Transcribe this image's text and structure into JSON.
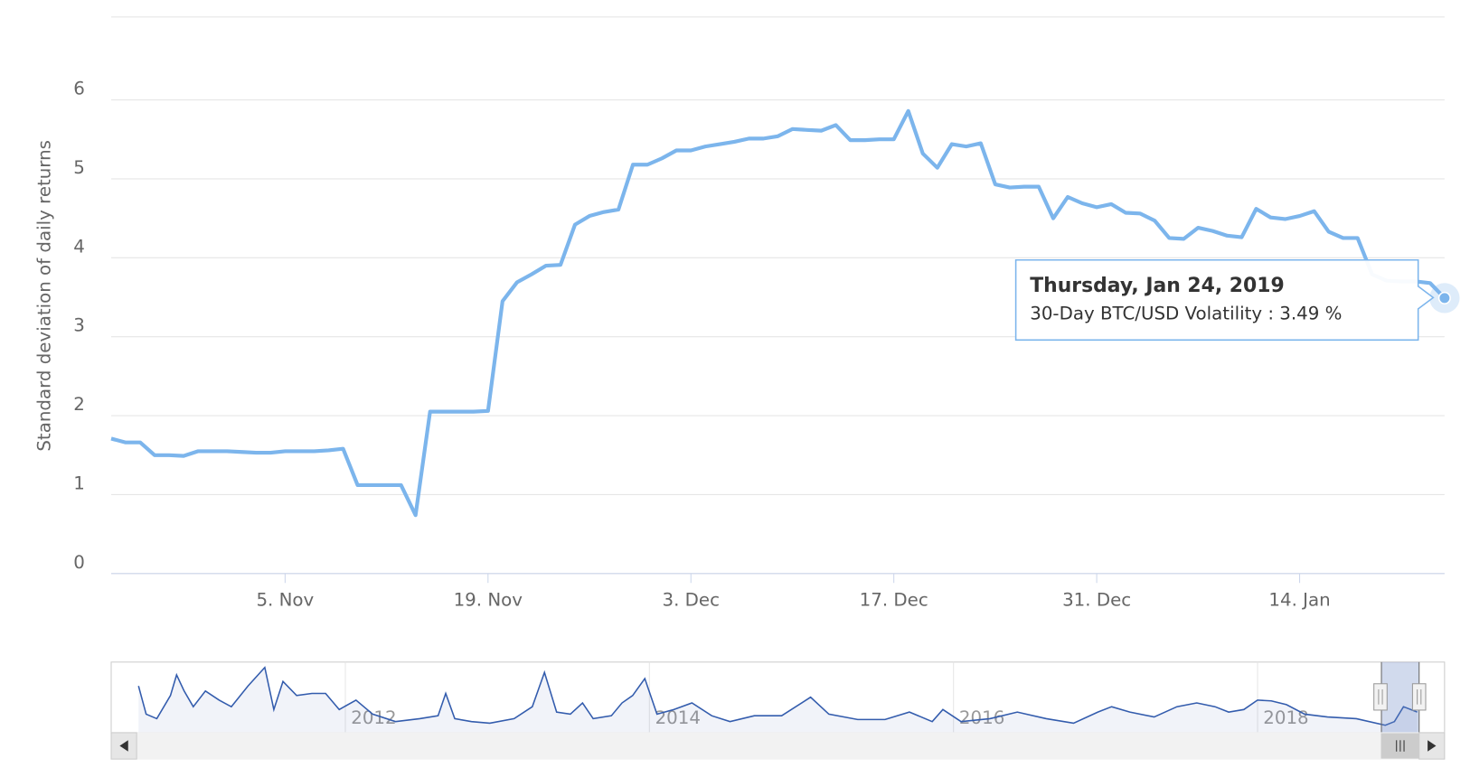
{
  "chart_data": {
    "type": "line",
    "y_axis_title": "Standard deviation of daily returns",
    "x": [
      "24. Oct",
      "25. Oct",
      "26. Oct",
      "27. Oct",
      "28. Oct",
      "29. Oct",
      "30. Oct",
      "31. Oct",
      "1. Nov",
      "2. Nov",
      "3. Nov",
      "4. Nov",
      "5. Nov",
      "6. Nov",
      "7. Nov",
      "8. Nov",
      "9. Nov",
      "10. Nov",
      "11. Nov",
      "12. Nov",
      "13. Nov",
      "14. Nov",
      "15. Nov",
      "16. Nov",
      "17. Nov",
      "18. Nov",
      "19. Nov",
      "20. Nov",
      "21. Nov",
      "22. Nov",
      "23. Nov",
      "24. Nov",
      "25. Nov",
      "26. Nov",
      "27. Nov",
      "28. Nov",
      "29. Nov",
      "30. Nov",
      "1. Dec",
      "2. Dec",
      "3. Dec",
      "4. Dec",
      "5. Dec",
      "6. Dec",
      "7. Dec",
      "8. Dec",
      "9. Dec",
      "10. Dec",
      "11. Dec",
      "12. Dec",
      "13. Dec",
      "14. Dec",
      "15. Dec",
      "16. Dec",
      "17. Dec",
      "18. Dec",
      "19. Dec",
      "20. Dec",
      "21. Dec",
      "22. Dec",
      "23. Dec",
      "24. Dec",
      "25. Dec",
      "26. Dec",
      "27. Dec",
      "28. Dec",
      "29. Dec",
      "30. Dec",
      "31. Dec",
      "1. Jan",
      "2. Jan",
      "3. Jan",
      "4. Jan",
      "5. Jan",
      "6. Jan",
      "7. Jan",
      "8. Jan",
      "9. Jan",
      "10. Jan",
      "11. Jan",
      "12. Jan",
      "13. Jan",
      "14. Jan",
      "15. Jan",
      "16. Jan",
      "17. Jan",
      "18. Jan",
      "19. Jan",
      "20. Jan",
      "21. Jan",
      "22. Jan",
      "23. Jan",
      "24. Jan"
    ],
    "series": [
      {
        "color": "#7cb5ec",
        "values": [
          1.71,
          1.66,
          1.66,
          1.5,
          1.5,
          1.49,
          1.55,
          1.55,
          1.55,
          1.54,
          1.53,
          1.53,
          1.55,
          1.55,
          1.55,
          1.56,
          1.58,
          1.12,
          1.12,
          1.12,
          1.12,
          0.74,
          2.05,
          2.05,
          2.05,
          2.05,
          2.06,
          3.45,
          3.69,
          3.79,
          3.9,
          3.91,
          4.42,
          4.53,
          4.58,
          4.61,
          5.18,
          5.18,
          5.26,
          5.36,
          5.36,
          5.41,
          5.44,
          5.47,
          5.51,
          5.51,
          5.54,
          5.63,
          5.62,
          5.61,
          5.68,
          5.49,
          5.49,
          5.5,
          5.5,
          5.86,
          5.32,
          5.14,
          5.44,
          5.41,
          5.45,
          4.93,
          4.89,
          4.9,
          4.9,
          4.5,
          4.77,
          4.69,
          4.64,
          4.68,
          4.57,
          4.56,
          4.47,
          4.25,
          4.24,
          4.38,
          4.34,
          4.28,
          4.26,
          4.62,
          4.51,
          4.49,
          4.53,
          4.59,
          4.33,
          4.25,
          4.25,
          3.79,
          3.71,
          3.7,
          3.7,
          3.68,
          3.49
        ]
      }
    ],
    "ylim": [
      0,
      7.05
    ],
    "yticks": [
      0,
      1,
      2,
      3,
      4,
      5,
      6
    ],
    "xticks": [
      "5. Nov",
      "19. Nov",
      "3. Dec",
      "17. Dec",
      "31. Dec",
      "14. Jan"
    ],
    "grid": true,
    "tooltip": {
      "title": "Thursday, Jan 24, 2019",
      "label": "30-Day BTC/USD Volatility : 3.49 %"
    },
    "navigator": {
      "color": "#335cad",
      "xlim": [
        2010.46,
        2019.23
      ],
      "xticks": [
        2012,
        2014,
        2016,
        2018
      ],
      "ylim": [
        0,
        17.1
      ],
      "x": [
        2010.64,
        2010.69,
        2010.76,
        2010.85,
        2010.89,
        2010.94,
        2011.0,
        2011.08,
        2011.17,
        2011.25,
        2011.36,
        2011.47,
        2011.53,
        2011.59,
        2011.68,
        2011.78,
        2011.87,
        2011.96,
        2012.07,
        2012.18,
        2012.33,
        2012.49,
        2012.61,
        2012.66,
        2012.72,
        2012.83,
        2012.95,
        2013.11,
        2013.23,
        2013.31,
        2013.39,
        2013.48,
        2013.56,
        2013.63,
        2013.75,
        2013.82,
        2013.89,
        2013.97,
        2014.05,
        2014.16,
        2014.28,
        2014.41,
        2014.53,
        2014.69,
        2014.87,
        2015.06,
        2015.18,
        2015.37,
        2015.55,
        2015.71,
        2015.86,
        2015.93,
        2016.05,
        2016.24,
        2016.42,
        2016.61,
        2016.79,
        2016.95,
        2017.04,
        2017.16,
        2017.32,
        2017.47,
        2017.6,
        2017.72,
        2017.81,
        2017.91,
        2018.0,
        2018.09,
        2018.19,
        2018.31,
        2018.46,
        2018.65,
        2018.84,
        2018.9,
        2018.96,
        2019.05
      ],
      "values": [
        11.3,
        4.5,
        3.4,
        9.0,
        14.0,
        10.1,
        6.3,
        10.1,
        7.9,
        6.3,
        11.3,
        15.8,
        5.6,
        12.4,
        9.0,
        9.5,
        9.5,
        5.6,
        7.9,
        4.5,
        2.7,
        3.4,
        4.1,
        9.5,
        3.4,
        2.7,
        2.3,
        3.4,
        6.3,
        14.6,
        5.0,
        4.5,
        7.2,
        3.4,
        4.1,
        7.2,
        9.0,
        13.1,
        4.5,
        5.6,
        7.2,
        4.1,
        2.7,
        4.1,
        4.1,
        8.6,
        4.5,
        3.2,
        3.2,
        5.0,
        2.7,
        5.6,
        2.7,
        3.4,
        5.0,
        3.4,
        2.3,
        5.0,
        6.3,
        5.0,
        3.8,
        6.3,
        7.2,
        6.3,
        5.0,
        5.6,
        7.9,
        7.7,
        6.8,
        4.5,
        3.8,
        3.4,
        1.8,
        2.7,
        6.3,
        5.0
      ]
    }
  }
}
